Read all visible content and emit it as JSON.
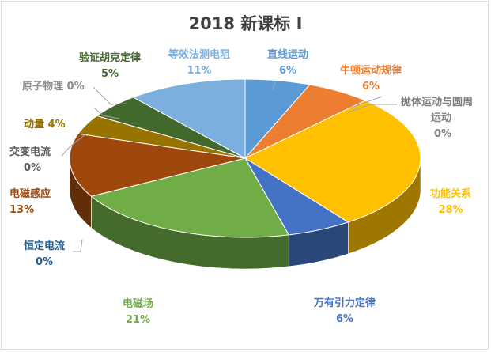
{
  "chart_data": {
    "type": "pie",
    "title": "2018 新课标 Ⅰ",
    "slices": [
      {
        "label": "直线运动",
        "value": 6,
        "display": "6%",
        "color": "#5b9bd5",
        "label_lines": [
          "直线运动"
        ]
      },
      {
        "label": "牛顿运动规律",
        "value": 6,
        "display": "6%",
        "color": "#ed7d31",
        "label_lines": [
          "牛顿运动规律"
        ]
      },
      {
        "label": "抛体运动与圆周运动",
        "value": 0,
        "display": "0%",
        "color": "#a5a5a5",
        "label_lines": [
          "抛体运动与圆周",
          "运动"
        ]
      },
      {
        "label": "功能关系",
        "value": 28,
        "display": "28%",
        "color": "#ffc000",
        "label_lines": [
          "功能关系"
        ]
      },
      {
        "label": "万有引力定律",
        "value": 6,
        "display": "6%",
        "color": "#4472c4",
        "label_lines": [
          "万有引力定律"
        ]
      },
      {
        "label": "电磁场",
        "value": 21,
        "display": "21%",
        "color": "#70ad47",
        "label_lines": [
          "电磁场"
        ]
      },
      {
        "label": "恒定电流",
        "value": 0,
        "display": "0%",
        "color": "#255e91",
        "label_lines": [
          "恒定电流"
        ]
      },
      {
        "label": "电磁感应",
        "value": 13,
        "display": "13%",
        "color": "#9e480e",
        "label_lines": [
          "电磁感应"
        ]
      },
      {
        "label": "交变电流",
        "value": 0,
        "display": "0%",
        "color": "#636363",
        "label_lines": [
          "交变电流"
        ]
      },
      {
        "label": "动量",
        "value": 4,
        "display": "4%",
        "color": "#997300",
        "label_lines": [
          "动量"
        ]
      },
      {
        "label": "原子物理",
        "value": 0,
        "display": "0%",
        "color": "#264478",
        "label_lines": [
          "原子物理"
        ]
      },
      {
        "label": "验证胡克定律",
        "value": 5,
        "display": "5%",
        "color": "#43682b",
        "label_lines": [
          "验证胡克定律"
        ]
      },
      {
        "label": "等效法测电阻",
        "value": 11,
        "display": "11%",
        "color": "#7cafdd",
        "label_lines": [
          "等效法测电阻"
        ]
      }
    ]
  }
}
